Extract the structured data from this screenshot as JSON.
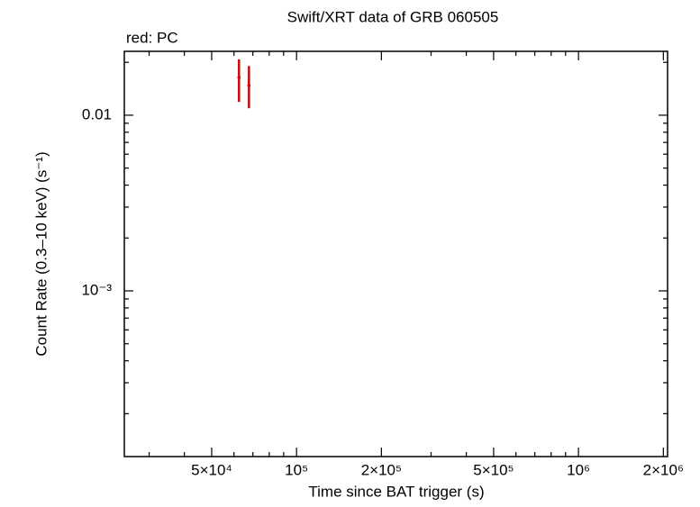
{
  "chart_data": {
    "type": "scatter",
    "title": "Swift/XRT data of GRB 060505",
    "annotation": "red: PC",
    "xlabel": "Time since BAT trigger (s)",
    "ylabel": "Count Rate (0.3–10 keV) (s⁻¹)",
    "xlog": true,
    "ylog": true,
    "xlim": [
      24500,
      2070000
    ],
    "ylim": [
      0.000114,
      0.0231
    ],
    "xticks": [
      {
        "value": 50000,
        "label": "5×10⁴"
      },
      {
        "value": 100000,
        "label": "10⁵"
      },
      {
        "value": 200000,
        "label": "2×10⁵"
      },
      {
        "value": 500000,
        "label": "5×10⁵"
      },
      {
        "value": 1000000,
        "label": "10⁶"
      },
      {
        "value": 2000000,
        "label": "2×10⁶"
      }
    ],
    "xminorticks": [
      30000,
      40000,
      60000,
      70000,
      80000,
      90000,
      300000,
      400000,
      600000,
      700000,
      800000,
      900000
    ],
    "yticks": [
      {
        "value": 0.001,
        "label": "10⁻³"
      },
      0.01
    ],
    "yminorticks": [
      0.0002,
      0.0003,
      0.0004,
      0.0005,
      0.0006,
      0.0007,
      0.0008,
      0.0009,
      0.002,
      0.003,
      0.004,
      0.005,
      0.006,
      0.007,
      0.008,
      0.009,
      0.02
    ],
    "series": [
      {
        "color": "#e00000",
        "x": [
          62500,
          67800
        ],
        "values": [
          0.0164,
          0.01476
        ],
        "yerr_low": [
          0.0045,
          0.0038
        ],
        "yerr_high": [
          0.0044,
          0.0043
        ]
      }
    ]
  }
}
